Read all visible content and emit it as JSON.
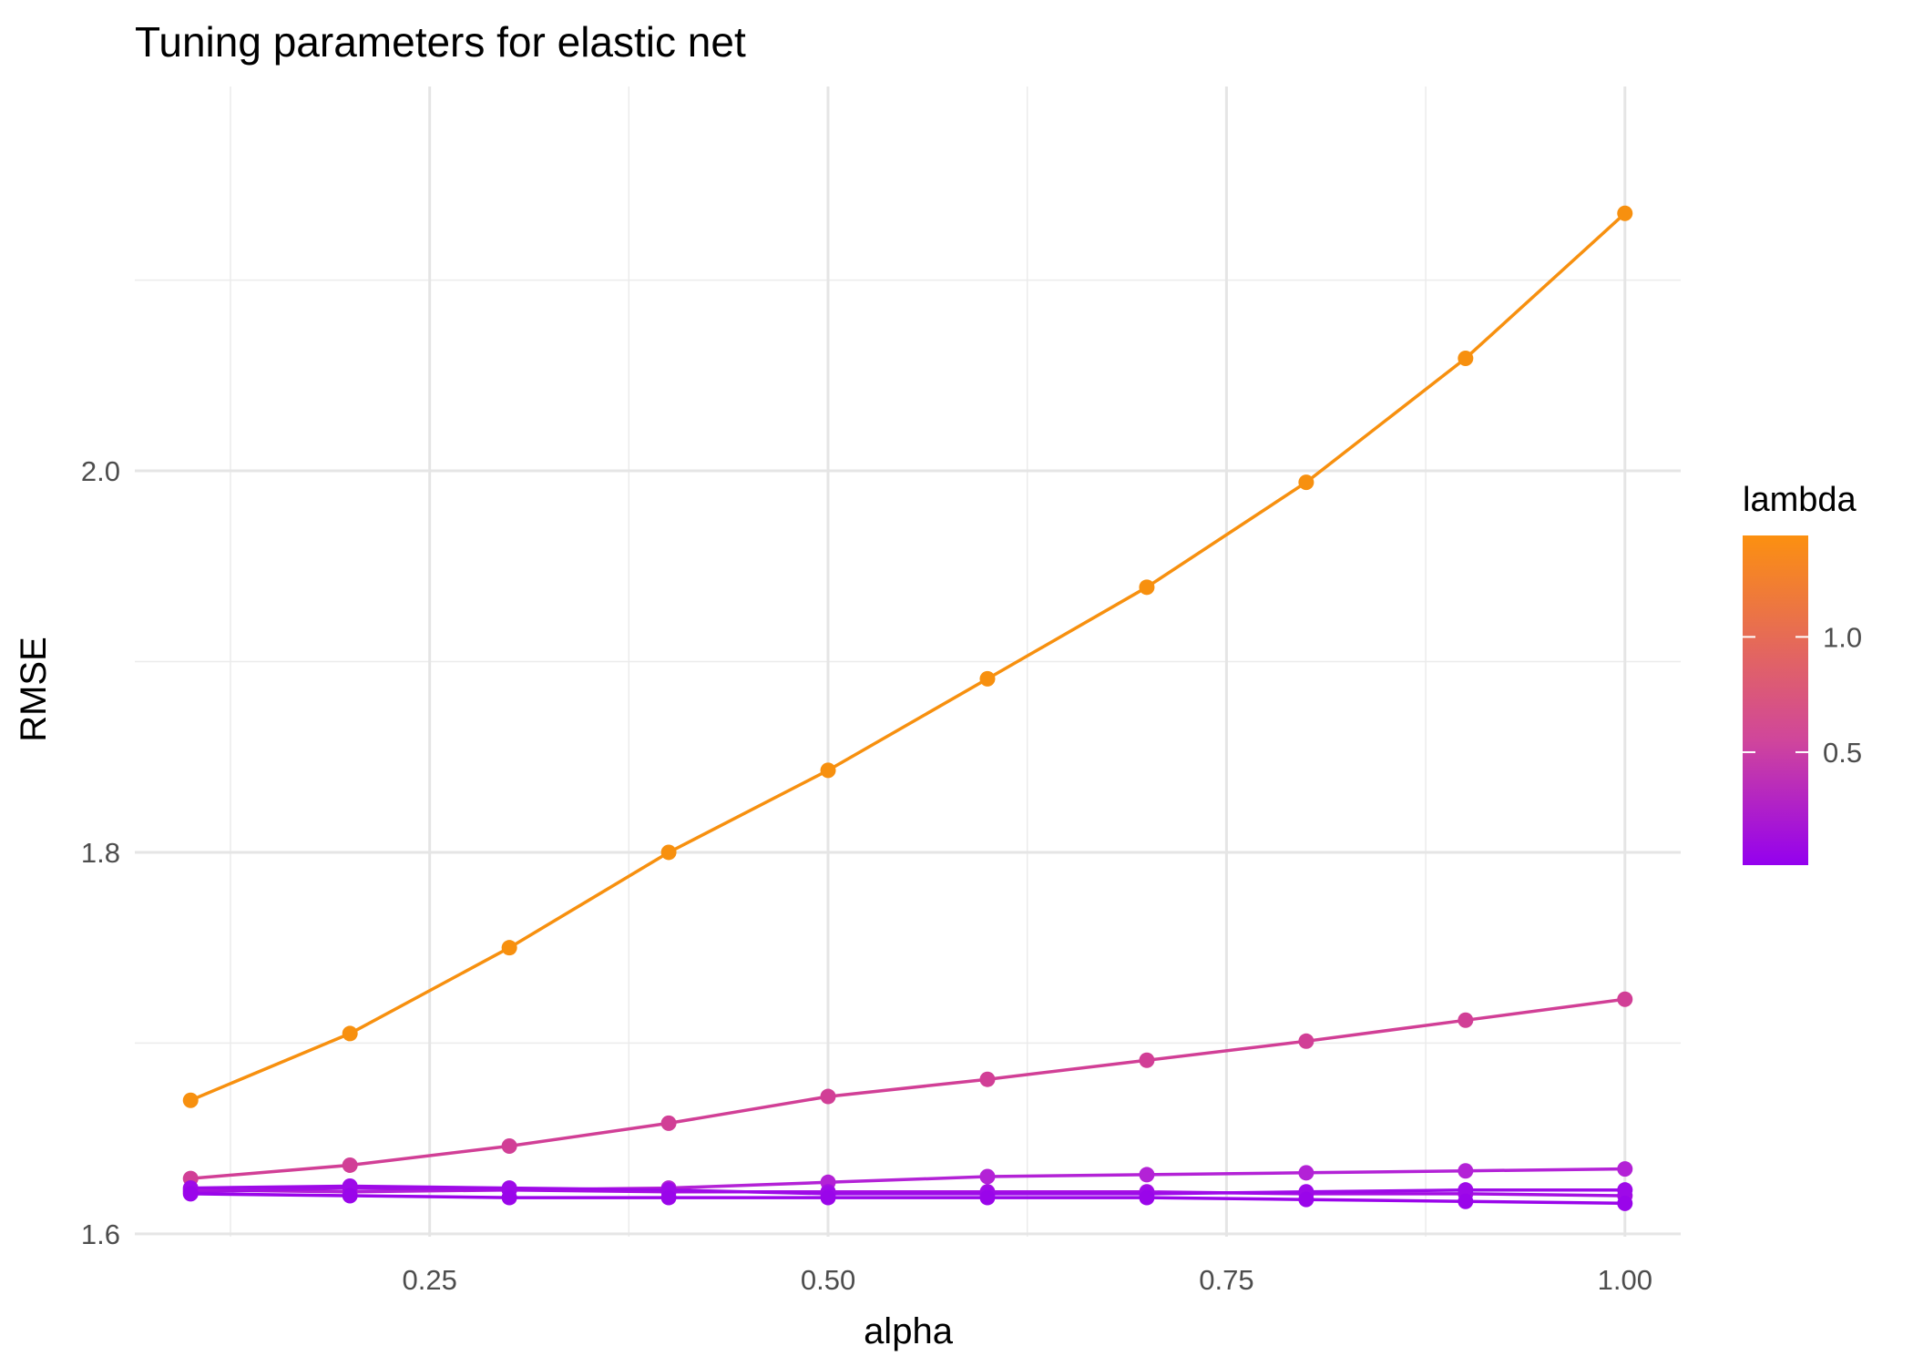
{
  "chart_data": {
    "type": "line",
    "title": "Tuning parameters for elastic net",
    "xlabel": "alpha",
    "ylabel": "RMSE",
    "xlim": [
      0.065,
      1.035
    ],
    "ylim": [
      1.5985,
      2.2015
    ],
    "x_ticks": [
      0.25,
      0.5,
      0.75,
      1.0
    ],
    "x_tick_labels": [
      "0.25",
      "0.50",
      "0.75",
      "1.00"
    ],
    "y_ticks": [
      1.6,
      1.8,
      2.0
    ],
    "y_tick_labels": [
      "1.6",
      "1.8",
      "2.0"
    ],
    "grid": true,
    "x": [
      0.1,
      0.2,
      0.3,
      0.4,
      0.5,
      0.6,
      0.7,
      0.8,
      0.9,
      1.0
    ],
    "series": [
      {
        "lambda": 1.44,
        "color": "#f7900f",
        "values": [
          1.67,
          1.705,
          1.75,
          1.8,
          1.843,
          1.891,
          1.939,
          1.994,
          2.059,
          2.135
        ]
      },
      {
        "lambda": 0.55,
        "color": "#d13f96",
        "values": [
          1.629,
          1.636,
          1.646,
          1.658,
          1.672,
          1.681,
          1.691,
          1.701,
          1.712,
          1.723
        ]
      },
      {
        "lambda": 0.2,
        "color": "#b322d6",
        "values": [
          1.623,
          1.622,
          1.623,
          1.624,
          1.627,
          1.63,
          1.631,
          1.632,
          1.633,
          1.634
        ]
      },
      {
        "lambda": 0.1,
        "color": "#a40fe2",
        "values": [
          1.622,
          1.624,
          1.623,
          1.622,
          1.622,
          1.622,
          1.622,
          1.621,
          1.621,
          1.62
        ]
      },
      {
        "lambda": 0.06,
        "color": "#9e0ae8",
        "values": [
          1.624,
          1.625,
          1.624,
          1.623,
          1.621,
          1.621,
          1.621,
          1.622,
          1.623,
          1.623
        ]
      },
      {
        "lambda": 0.03,
        "color": "#9a05ea",
        "values": [
          1.621,
          1.62,
          1.619,
          1.619,
          1.619,
          1.619,
          1.619,
          1.618,
          1.617,
          1.616
        ]
      }
    ],
    "legend": {
      "title": "lambda",
      "placement": "right",
      "range": [
        0.01,
        1.44
      ],
      "ticks": [
        0.5,
        1.0
      ],
      "tick_labels": [
        "0.5",
        "1.0"
      ],
      "color_low": "#9400ef",
      "color_mid": "#d0469b",
      "color_high": "#fc9010"
    }
  }
}
